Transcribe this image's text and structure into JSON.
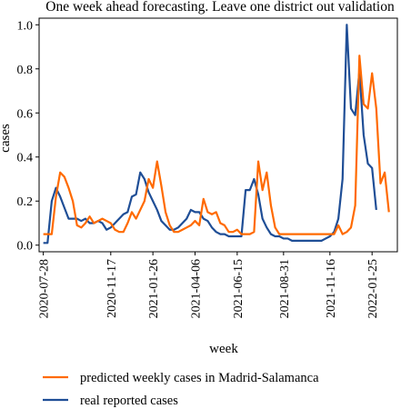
{
  "chart_data": {
    "type": "line",
    "title": "One week ahead forecasting. Leave one district out validation",
    "xlabel": "week",
    "ylabel": "cases",
    "ylim": [
      -0.03,
      1.03
    ],
    "xlim": [
      "2020-07-21",
      "2022-03-08"
    ],
    "y_ticks": [
      0.0,
      0.2,
      0.4,
      0.6,
      0.8,
      1.0
    ],
    "y_tick_labels": [
      "0.0",
      "0.2",
      "0.4",
      "0.6",
      "0.8",
      "1.0"
    ],
    "x_ticks": [
      "2020-07-28",
      "2020-11-17",
      "2021-01-26",
      "2021-04-06",
      "2021-06-15",
      "2021-08-31",
      "2021-11-16",
      "2022-01-25"
    ],
    "grid": false,
    "legend_position": "below",
    "series": [
      {
        "name": "predicted weekly cases in Madrid-Salamanca",
        "color": "#ff6a00",
        "points": [
          [
            "2020-07-28",
            0.05
          ],
          [
            "2020-08-04",
            0.05
          ],
          [
            "2020-08-11",
            0.05
          ],
          [
            "2020-08-18",
            0.22
          ],
          [
            "2020-08-25",
            0.33
          ],
          [
            "2020-09-01",
            0.31
          ],
          [
            "2020-09-08",
            0.26
          ],
          [
            "2020-09-15",
            0.2
          ],
          [
            "2020-09-22",
            0.09
          ],
          [
            "2020-09-29",
            0.08
          ],
          [
            "2020-10-06",
            0.1
          ],
          [
            "2020-10-13",
            0.13
          ],
          [
            "2020-10-20",
            0.1
          ],
          [
            "2020-10-27",
            0.11
          ],
          [
            "2020-11-03",
            0.12
          ],
          [
            "2020-11-10",
            0.11
          ],
          [
            "2020-11-17",
            0.1
          ],
          [
            "2020-11-24",
            0.07
          ],
          [
            "2020-12-01",
            0.06
          ],
          [
            "2020-12-08",
            0.06
          ],
          [
            "2020-12-15",
            0.1
          ],
          [
            "2020-12-22",
            0.15
          ],
          [
            "2020-12-29",
            0.12
          ],
          [
            "2021-01-05",
            0.16
          ],
          [
            "2021-01-12",
            0.2
          ],
          [
            "2021-01-19",
            0.3
          ],
          [
            "2021-01-26",
            0.26
          ],
          [
            "2021-02-02",
            0.38
          ],
          [
            "2021-02-09",
            0.27
          ],
          [
            "2021-02-16",
            0.15
          ],
          [
            "2021-02-23",
            0.09
          ],
          [
            "2021-03-02",
            0.06
          ],
          [
            "2021-03-09",
            0.06
          ],
          [
            "2021-03-16",
            0.07
          ],
          [
            "2021-03-23",
            0.08
          ],
          [
            "2021-03-30",
            0.09
          ],
          [
            "2021-04-06",
            0.11
          ],
          [
            "2021-04-13",
            0.09
          ],
          [
            "2021-04-20",
            0.21
          ],
          [
            "2021-04-27",
            0.15
          ],
          [
            "2021-05-04",
            0.14
          ],
          [
            "2021-05-11",
            0.15
          ],
          [
            "2021-05-18",
            0.1
          ],
          [
            "2021-05-25",
            0.09
          ],
          [
            "2021-06-01",
            0.06
          ],
          [
            "2021-06-08",
            0.06
          ],
          [
            "2021-06-15",
            0.07
          ],
          [
            "2021-06-22",
            0.05
          ],
          [
            "2021-06-29",
            0.05
          ],
          [
            "2021-07-06",
            0.05
          ],
          [
            "2021-07-13",
            0.06
          ],
          [
            "2021-07-20",
            0.38
          ],
          [
            "2021-07-27",
            0.25
          ],
          [
            "2021-08-03",
            0.33
          ],
          [
            "2021-08-10",
            0.18
          ],
          [
            "2021-08-17",
            0.08
          ],
          [
            "2021-08-24",
            0.05
          ],
          [
            "2021-08-31",
            0.05
          ],
          [
            "2021-09-07",
            0.05
          ],
          [
            "2021-09-14",
            0.05
          ],
          [
            "2021-09-21",
            0.05
          ],
          [
            "2021-09-28",
            0.05
          ],
          [
            "2021-10-05",
            0.05
          ],
          [
            "2021-10-12",
            0.05
          ],
          [
            "2021-10-19",
            0.05
          ],
          [
            "2021-10-26",
            0.05
          ],
          [
            "2021-11-02",
            0.05
          ],
          [
            "2021-11-09",
            0.05
          ],
          [
            "2021-11-16",
            0.05
          ],
          [
            "2021-11-23",
            0.05
          ],
          [
            "2021-11-30",
            0.09
          ],
          [
            "2021-12-07",
            0.05
          ],
          [
            "2021-12-14",
            0.06
          ],
          [
            "2021-12-21",
            0.08
          ],
          [
            "2021-12-28",
            0.18
          ],
          [
            "2022-01-04",
            0.86
          ],
          [
            "2022-01-11",
            0.64
          ],
          [
            "2022-01-18",
            0.62
          ],
          [
            "2022-01-25",
            0.78
          ],
          [
            "2022-02-01",
            0.62
          ],
          [
            "2022-02-08",
            0.28
          ],
          [
            "2022-02-15",
            0.33
          ],
          [
            "2022-02-22",
            0.15
          ]
        ]
      },
      {
        "name": "real reported cases",
        "color": "#1f4e96",
        "points": [
          [
            "2020-07-28",
            0.01
          ],
          [
            "2020-08-04",
            0.01
          ],
          [
            "2020-08-11",
            0.2
          ],
          [
            "2020-08-18",
            0.26
          ],
          [
            "2020-08-25",
            0.22
          ],
          [
            "2020-09-01",
            0.17
          ],
          [
            "2020-09-08",
            0.12
          ],
          [
            "2020-09-15",
            0.12
          ],
          [
            "2020-09-22",
            0.12
          ],
          [
            "2020-09-29",
            0.11
          ],
          [
            "2020-10-06",
            0.12
          ],
          [
            "2020-10-13",
            0.1
          ],
          [
            "2020-10-20",
            0.1
          ],
          [
            "2020-10-27",
            0.11
          ],
          [
            "2020-11-03",
            0.1
          ],
          [
            "2020-11-10",
            0.07
          ],
          [
            "2020-11-17",
            0.08
          ],
          [
            "2020-11-24",
            0.1
          ],
          [
            "2020-12-01",
            0.12
          ],
          [
            "2020-12-08",
            0.14
          ],
          [
            "2020-12-15",
            0.15
          ],
          [
            "2020-12-22",
            0.22
          ],
          [
            "2020-12-29",
            0.23
          ],
          [
            "2021-01-05",
            0.33
          ],
          [
            "2021-01-12",
            0.3
          ],
          [
            "2021-01-19",
            0.24
          ],
          [
            "2021-01-26",
            0.2
          ],
          [
            "2021-02-02",
            0.16
          ],
          [
            "2021-02-09",
            0.11
          ],
          [
            "2021-02-16",
            0.09
          ],
          [
            "2021-02-23",
            0.07
          ],
          [
            "2021-03-02",
            0.07
          ],
          [
            "2021-03-09",
            0.08
          ],
          [
            "2021-03-16",
            0.1
          ],
          [
            "2021-03-23",
            0.12
          ],
          [
            "2021-03-30",
            0.16
          ],
          [
            "2021-04-06",
            0.15
          ],
          [
            "2021-04-13",
            0.15
          ],
          [
            "2021-04-20",
            0.12
          ],
          [
            "2021-04-27",
            0.11
          ],
          [
            "2021-05-04",
            0.08
          ],
          [
            "2021-05-11",
            0.06
          ],
          [
            "2021-05-18",
            0.05
          ],
          [
            "2021-05-25",
            0.05
          ],
          [
            "2021-06-01",
            0.04
          ],
          [
            "2021-06-08",
            0.04
          ],
          [
            "2021-06-15",
            0.04
          ],
          [
            "2021-06-22",
            0.04
          ],
          [
            "2021-06-29",
            0.25
          ],
          [
            "2021-07-06",
            0.25
          ],
          [
            "2021-07-13",
            0.3
          ],
          [
            "2021-07-20",
            0.23
          ],
          [
            "2021-07-27",
            0.12
          ],
          [
            "2021-08-03",
            0.08
          ],
          [
            "2021-08-10",
            0.05
          ],
          [
            "2021-08-17",
            0.04
          ],
          [
            "2021-08-24",
            0.04
          ],
          [
            "2021-08-31",
            0.03
          ],
          [
            "2021-09-07",
            0.03
          ],
          [
            "2021-09-14",
            0.02
          ],
          [
            "2021-09-21",
            0.02
          ],
          [
            "2021-09-28",
            0.02
          ],
          [
            "2021-10-05",
            0.02
          ],
          [
            "2021-10-12",
            0.02
          ],
          [
            "2021-10-19",
            0.02
          ],
          [
            "2021-10-26",
            0.02
          ],
          [
            "2021-11-02",
            0.02
          ],
          [
            "2021-11-09",
            0.03
          ],
          [
            "2021-11-16",
            0.04
          ],
          [
            "2021-11-23",
            0.06
          ],
          [
            "2021-11-30",
            0.12
          ],
          [
            "2021-12-07",
            0.3
          ],
          [
            "2021-12-14",
            1.0
          ],
          [
            "2021-12-21",
            0.62
          ],
          [
            "2021-12-28",
            0.59
          ],
          [
            "2022-01-04",
            0.79
          ],
          [
            "2022-01-11",
            0.5
          ],
          [
            "2022-01-18",
            0.37
          ],
          [
            "2022-01-25",
            0.35
          ],
          [
            "2022-02-01",
            0.16
          ]
        ]
      }
    ]
  }
}
